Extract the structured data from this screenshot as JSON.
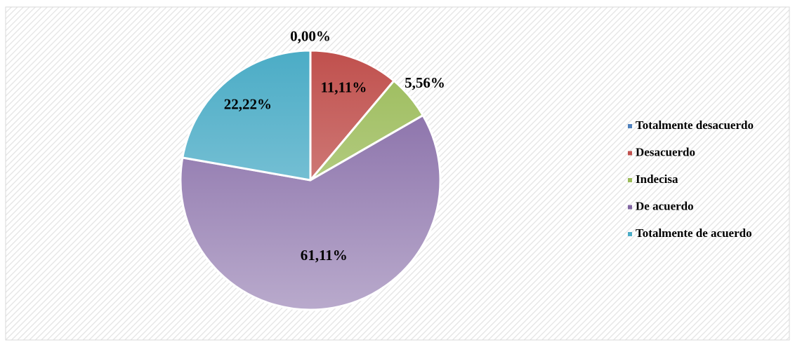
{
  "chart_data": {
    "type": "pie",
    "categories": [
      "Totalmente desacuerdo",
      "Desacuerdo",
      "Indecisa",
      "De acuerdo",
      "Totalmente de acuerdo"
    ],
    "values": [
      0,
      11.11,
      5.56,
      61.11,
      22.22
    ],
    "value_labels": [
      "0,00%",
      "11,11%",
      "5,56%",
      "61,11%",
      "22,22%"
    ],
    "colors": [
      "#4f81bd",
      "#c0504d",
      "#9bbb59",
      "#8064a2",
      "#4bacc6"
    ],
    "legend": "right"
  }
}
